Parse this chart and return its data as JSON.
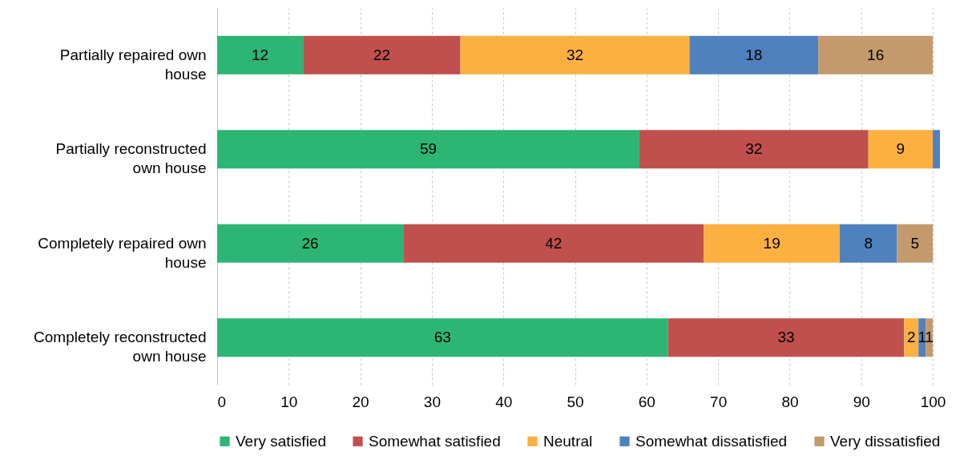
{
  "chart_data": {
    "type": "bar",
    "orientation": "horizontal",
    "stacked": true,
    "categories": [
      "Partially repaired own house",
      "Partially reconstructed own house",
      "Completely repaired own house",
      "Completely reconstructed own house"
    ],
    "series": [
      {
        "name": "Very satisfied",
        "color": "#2db573",
        "values": [
          12,
          59,
          26,
          63
        ],
        "value_labels": [
          "12",
          "59",
          "26",
          "63"
        ]
      },
      {
        "name": "Somewhat satisfied",
        "color": "#c0504d",
        "values": [
          22,
          32,
          42,
          33
        ],
        "value_labels": [
          "22",
          "32",
          "42",
          "33"
        ]
      },
      {
        "name": "Neutral",
        "color": "#fbb040",
        "values": [
          32,
          9,
          19,
          2
        ],
        "value_labels": [
          "32",
          "9",
          "19",
          "2"
        ]
      },
      {
        "name": "Somewhat dissatisfied",
        "color": "#4f81bd",
        "values": [
          18,
          1,
          8,
          1
        ],
        "value_labels": [
          "18",
          null,
          "8",
          "1"
        ]
      },
      {
        "name": "Very dissatisfied",
        "color": "#c49a6c",
        "values": [
          16,
          null,
          5,
          1
        ],
        "value_labels": [
          "16",
          null,
          "5",
          "1"
        ]
      }
    ],
    "xlim": [
      0,
      101
    ],
    "xticks": [
      0,
      10,
      20,
      30,
      40,
      50,
      60,
      70,
      80,
      90,
      100
    ],
    "grid": "x",
    "legend": "bottom"
  }
}
